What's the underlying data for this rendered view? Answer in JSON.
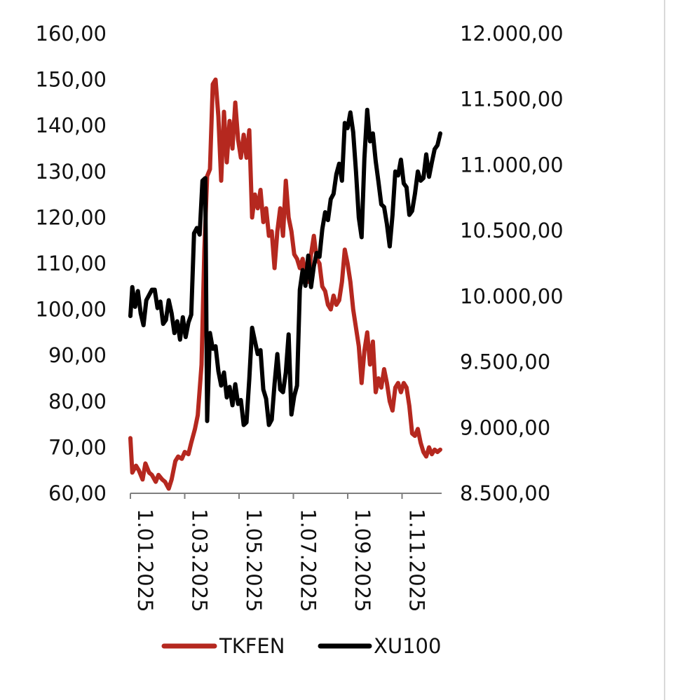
{
  "chart_data": {
    "type": "line",
    "dual_axis": true,
    "x_ticks": [
      "1.01.2025",
      "1.03.2025",
      "1.05.2025",
      "1.07.2025",
      "1.09.2025",
      "1.11.2025"
    ],
    "x_range": [
      "2025-01-01",
      "2025-11-28"
    ],
    "y_left": {
      "range": [
        60,
        160
      ],
      "ticks": [
        60,
        70,
        80,
        90,
        100,
        110,
        120,
        130,
        140,
        150,
        160
      ],
      "tick_labels": [
        "60,00",
        "70,00",
        "80,00",
        "90,00",
        "100,00",
        "110,00",
        "120,00",
        "130,00",
        "140,00",
        "150,00",
        "160,00"
      ]
    },
    "y_right": {
      "range": [
        8500,
        12000
      ],
      "ticks": [
        8500,
        9000,
        9500,
        10000,
        10500,
        11000,
        11500,
        12000
      ],
      "tick_labels": [
        "8.500,00",
        "9.000,00",
        "9.500,00",
        "10.000,00",
        "10.500,00",
        "11.000,00",
        "11.500,00",
        "12.000,00"
      ]
    },
    "grid": false,
    "legend_position": "bottom",
    "series": [
      {
        "name": "TKFEN",
        "axis": "left",
        "color": "#b5281f",
        "points": [
          [
            "2025-01-01",
            72
          ],
          [
            "2025-01-03",
            64.5
          ],
          [
            "2025-01-07",
            66
          ],
          [
            "2025-01-10",
            65
          ],
          [
            "2025-01-14",
            63
          ],
          [
            "2025-01-17",
            66.5
          ],
          [
            "2025-01-21",
            64.5
          ],
          [
            "2025-01-24",
            64
          ],
          [
            "2025-01-28",
            62.5
          ],
          [
            "2025-01-31",
            64
          ],
          [
            "2025-02-04",
            63
          ],
          [
            "2025-02-07",
            62.5
          ],
          [
            "2025-02-11",
            61
          ],
          [
            "2025-02-14",
            63
          ],
          [
            "2025-02-18",
            67
          ],
          [
            "2025-02-21",
            68
          ],
          [
            "2025-02-25",
            67.5
          ],
          [
            "2025-02-28",
            69
          ],
          [
            "2025-03-04",
            68.5
          ],
          [
            "2025-03-07",
            71
          ],
          [
            "2025-03-11",
            74
          ],
          [
            "2025-03-14",
            77
          ],
          [
            "2025-03-18",
            88
          ],
          [
            "2025-03-21",
            113
          ],
          [
            "2025-03-24",
            129
          ],
          [
            "2025-03-27",
            130.5
          ],
          [
            "2025-03-30",
            149
          ],
          [
            "2025-04-02",
            150
          ],
          [
            "2025-04-05",
            142
          ],
          [
            "2025-04-08",
            128
          ],
          [
            "2025-04-11",
            143
          ],
          [
            "2025-04-14",
            132
          ],
          [
            "2025-04-17",
            141
          ],
          [
            "2025-04-20",
            135
          ],
          [
            "2025-04-23",
            145
          ],
          [
            "2025-04-26",
            137
          ],
          [
            "2025-04-29",
            133
          ],
          [
            "2025-05-02",
            138
          ],
          [
            "2025-05-05",
            133
          ],
          [
            "2025-05-08",
            139
          ],
          [
            "2025-05-11",
            120
          ],
          [
            "2025-05-14",
            125
          ],
          [
            "2025-05-17",
            122
          ],
          [
            "2025-05-20",
            126
          ],
          [
            "2025-05-23",
            119
          ],
          [
            "2025-05-26",
            122
          ],
          [
            "2025-05-29",
            116
          ],
          [
            "2025-06-01",
            117
          ],
          [
            "2025-06-04",
            109
          ],
          [
            "2025-06-07",
            117
          ],
          [
            "2025-06-10",
            122
          ],
          [
            "2025-06-13",
            116
          ],
          [
            "2025-06-16",
            128
          ],
          [
            "2025-06-19",
            120
          ],
          [
            "2025-06-22",
            117
          ],
          [
            "2025-06-25",
            112
          ],
          [
            "2025-06-28",
            111
          ],
          [
            "2025-07-01",
            109
          ],
          [
            "2025-07-04",
            111
          ],
          [
            "2025-07-07",
            108
          ],
          [
            "2025-07-10",
            106
          ],
          [
            "2025-07-13",
            112
          ],
          [
            "2025-07-16",
            116
          ],
          [
            "2025-07-19",
            111
          ],
          [
            "2025-07-22",
            110
          ],
          [
            "2025-07-25",
            105
          ],
          [
            "2025-07-28",
            104
          ],
          [
            "2025-07-31",
            101
          ],
          [
            "2025-08-03",
            100
          ],
          [
            "2025-08-06",
            103
          ],
          [
            "2025-08-09",
            101
          ],
          [
            "2025-08-12",
            102
          ],
          [
            "2025-08-15",
            106
          ],
          [
            "2025-08-18",
            113
          ],
          [
            "2025-08-21",
            110
          ],
          [
            "2025-08-24",
            106
          ],
          [
            "2025-08-27",
            100
          ],
          [
            "2025-08-30",
            96
          ],
          [
            "2025-09-02",
            92
          ],
          [
            "2025-09-05",
            84
          ],
          [
            "2025-09-08",
            91
          ],
          [
            "2025-09-11",
            95
          ],
          [
            "2025-09-14",
            88
          ],
          [
            "2025-09-17",
            93
          ],
          [
            "2025-09-20",
            82
          ],
          [
            "2025-09-23",
            85
          ],
          [
            "2025-09-26",
            83
          ],
          [
            "2025-09-29",
            87
          ],
          [
            "2025-10-02",
            84
          ],
          [
            "2025-10-05",
            80
          ],
          [
            "2025-10-08",
            78
          ],
          [
            "2025-10-11",
            83
          ],
          [
            "2025-10-14",
            84
          ],
          [
            "2025-10-17",
            82
          ],
          [
            "2025-10-20",
            84
          ],
          [
            "2025-10-23",
            83
          ],
          [
            "2025-10-26",
            79
          ],
          [
            "2025-10-29",
            73
          ],
          [
            "2025-11-01",
            72.5
          ],
          [
            "2025-11-04",
            74
          ],
          [
            "2025-11-07",
            71
          ],
          [
            "2025-11-10",
            69
          ],
          [
            "2025-11-13",
            68
          ],
          [
            "2025-11-16",
            70
          ],
          [
            "2025-11-19",
            68.5
          ],
          [
            "2025-11-22",
            69.5
          ],
          [
            "2025-11-25",
            69
          ],
          [
            "2025-11-28",
            69.5
          ]
        ]
      },
      {
        "name": "XU100",
        "axis": "right",
        "color": "#000000",
        "points": [
          [
            "2025-01-01",
            9850
          ],
          [
            "2025-01-03",
            10070
          ],
          [
            "2025-01-06",
            9920
          ],
          [
            "2025-01-09",
            10040
          ],
          [
            "2025-01-12",
            9870
          ],
          [
            "2025-01-15",
            9780
          ],
          [
            "2025-01-18",
            9970
          ],
          [
            "2025-01-21",
            10010
          ],
          [
            "2025-01-24",
            10050
          ],
          [
            "2025-01-27",
            10050
          ],
          [
            "2025-01-30",
            9910
          ],
          [
            "2025-02-02",
            9960
          ],
          [
            "2025-02-05",
            9790
          ],
          [
            "2025-02-08",
            9820
          ],
          [
            "2025-02-11",
            9970
          ],
          [
            "2025-02-14",
            9870
          ],
          [
            "2025-02-17",
            9720
          ],
          [
            "2025-02-20",
            9810
          ],
          [
            "2025-02-23",
            9670
          ],
          [
            "2025-02-26",
            9840
          ],
          [
            "2025-03-01",
            9690
          ],
          [
            "2025-03-04",
            9800
          ],
          [
            "2025-03-07",
            9860
          ],
          [
            "2025-03-10",
            10480
          ],
          [
            "2025-03-13",
            10520
          ],
          [
            "2025-03-16",
            10470
          ],
          [
            "2025-03-19",
            10880
          ],
          [
            "2025-03-22",
            10900
          ],
          [
            "2025-03-24",
            9050
          ],
          [
            "2025-03-27",
            9720
          ],
          [
            "2025-03-30",
            9600
          ],
          [
            "2025-04-02",
            9620
          ],
          [
            "2025-04-05",
            9430
          ],
          [
            "2025-04-08",
            9320
          ],
          [
            "2025-04-11",
            9420
          ],
          [
            "2025-04-14",
            9230
          ],
          [
            "2025-04-17",
            9310
          ],
          [
            "2025-04-20",
            9170
          ],
          [
            "2025-04-23",
            9330
          ],
          [
            "2025-04-26",
            9180
          ],
          [
            "2025-04-29",
            9210
          ],
          [
            "2025-05-02",
            9020
          ],
          [
            "2025-05-05",
            9040
          ],
          [
            "2025-05-08",
            9370
          ],
          [
            "2025-05-11",
            9760
          ],
          [
            "2025-05-14",
            9660
          ],
          [
            "2025-05-17",
            9560
          ],
          [
            "2025-05-20",
            9590
          ],
          [
            "2025-05-23",
            9290
          ],
          [
            "2025-05-26",
            9220
          ],
          [
            "2025-05-29",
            9020
          ],
          [
            "2025-06-01",
            9060
          ],
          [
            "2025-06-04",
            9330
          ],
          [
            "2025-06-07",
            9560
          ],
          [
            "2025-06-10",
            9290
          ],
          [
            "2025-06-13",
            9270
          ],
          [
            "2025-06-16",
            9420
          ],
          [
            "2025-06-19",
            9710
          ],
          [
            "2025-06-22",
            9100
          ],
          [
            "2025-06-25",
            9240
          ],
          [
            "2025-06-28",
            9320
          ],
          [
            "2025-07-01",
            10050
          ],
          [
            "2025-07-04",
            10200
          ],
          [
            "2025-07-07",
            10080
          ],
          [
            "2025-07-10",
            10310
          ],
          [
            "2025-07-13",
            10070
          ],
          [
            "2025-07-16",
            10230
          ],
          [
            "2025-07-19",
            10330
          ],
          [
            "2025-07-22",
            10300
          ],
          [
            "2025-07-25",
            10510
          ],
          [
            "2025-07-28",
            10640
          ],
          [
            "2025-07-31",
            10580
          ],
          [
            "2025-08-03",
            10740
          ],
          [
            "2025-08-06",
            10780
          ],
          [
            "2025-08-09",
            10930
          ],
          [
            "2025-08-12",
            11010
          ],
          [
            "2025-08-15",
            10880
          ],
          [
            "2025-08-18",
            11320
          ],
          [
            "2025-08-21",
            11280
          ],
          [
            "2025-08-24",
            11400
          ],
          [
            "2025-08-27",
            11250
          ],
          [
            "2025-08-30",
            10950
          ],
          [
            "2025-09-02",
            10600
          ],
          [
            "2025-09-05",
            10450
          ],
          [
            "2025-09-08",
            11050
          ],
          [
            "2025-09-11",
            11420
          ],
          [
            "2025-09-14",
            11180
          ],
          [
            "2025-09-17",
            11240
          ],
          [
            "2025-09-20",
            11030
          ],
          [
            "2025-09-23",
            10870
          ],
          [
            "2025-09-26",
            10700
          ],
          [
            "2025-09-29",
            10680
          ],
          [
            "2025-10-02",
            10550
          ],
          [
            "2025-10-05",
            10380
          ],
          [
            "2025-10-08",
            10620
          ],
          [
            "2025-10-11",
            10950
          ],
          [
            "2025-10-14",
            10920
          ],
          [
            "2025-10-17",
            11040
          ],
          [
            "2025-10-20",
            10860
          ],
          [
            "2025-10-23",
            10830
          ],
          [
            "2025-10-26",
            10620
          ],
          [
            "2025-10-29",
            10650
          ],
          [
            "2025-11-01",
            10780
          ],
          [
            "2025-11-04",
            10950
          ],
          [
            "2025-11-07",
            10880
          ],
          [
            "2025-11-10",
            10900
          ],
          [
            "2025-11-13",
            11080
          ],
          [
            "2025-11-16",
            10910
          ],
          [
            "2025-11-19",
            11020
          ],
          [
            "2025-11-22",
            11120
          ],
          [
            "2025-11-25",
            11150
          ],
          [
            "2025-11-28",
            11240
          ]
        ]
      }
    ]
  }
}
